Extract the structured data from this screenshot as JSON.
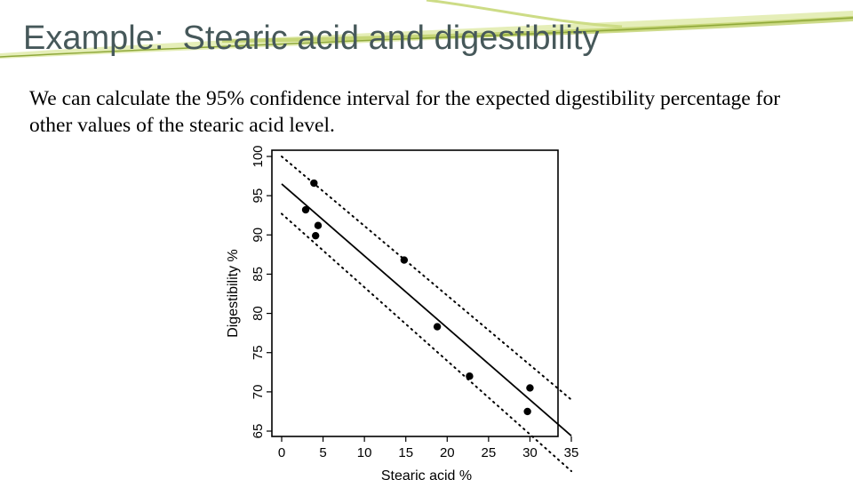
{
  "slide": {
    "title": "Example:  Stearic acid and digestibility",
    "body": "We can calculate the 95% confidence interval for the expected digestibility percentage for other values of the stearic acid level."
  },
  "colors": {
    "title": "#46585a",
    "swoosh_light": "#dfeaa6",
    "swoosh_mid": "#b9cc5c",
    "swoosh_dark": "#8fa83a"
  },
  "chart_data": {
    "type": "scatter",
    "xlabel": "Stearic acid %",
    "ylabel": "Digestibility %",
    "xlim": [
      0,
      35
    ],
    "ylim": [
      65,
      100
    ],
    "x_ticks": [
      0,
      5,
      10,
      15,
      20,
      25,
      30,
      35
    ],
    "y_ticks": [
      65,
      70,
      75,
      80,
      85,
      90,
      95,
      100
    ],
    "grid": false,
    "legend": "none",
    "points": [
      {
        "x": 3.9,
        "y": 96.6
      },
      {
        "x": 2.9,
        "y": 93.2
      },
      {
        "x": 4.4,
        "y": 91.2
      },
      {
        "x": 4.1,
        "y": 89.9
      },
      {
        "x": 14.8,
        "y": 86.8
      },
      {
        "x": 18.8,
        "y": 78.3
      },
      {
        "x": 22.7,
        "y": 72.0
      },
      {
        "x": 30.0,
        "y": 70.5
      },
      {
        "x": 29.7,
        "y": 67.5
      }
    ],
    "fit_line": {
      "x": [
        0,
        35
      ],
      "y": [
        96.5,
        64.4
      ]
    },
    "confidence_band": {
      "upper": {
        "x": [
          0,
          35
        ],
        "y": [
          100.0,
          69.0
        ]
      },
      "lower": {
        "x": [
          0,
          35
        ],
        "y": [
          92.7,
          59.9
        ]
      }
    }
  }
}
